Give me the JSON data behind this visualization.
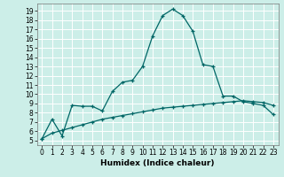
{
  "xlabel": "Humidex (Indice chaleur)",
  "bg_color": "#cceee8",
  "grid_color": "#ffffff",
  "line_color": "#006666",
  "xlim": [
    -0.5,
    23.5
  ],
  "ylim": [
    4.5,
    19.8
  ],
  "xticks": [
    0,
    1,
    2,
    3,
    4,
    5,
    6,
    7,
    8,
    9,
    10,
    11,
    12,
    13,
    14,
    15,
    16,
    17,
    18,
    19,
    20,
    21,
    22,
    23
  ],
  "yticks": [
    5,
    6,
    7,
    8,
    9,
    10,
    11,
    12,
    13,
    14,
    15,
    16,
    17,
    18,
    19
  ],
  "curve1_x": [
    0,
    1,
    2,
    3,
    4,
    5,
    6,
    7,
    8,
    9,
    10,
    11,
    12,
    13,
    14,
    15,
    16,
    17,
    18,
    19,
    20,
    21,
    22,
    23
  ],
  "curve1_y": [
    5.2,
    7.3,
    5.5,
    8.8,
    8.7,
    8.7,
    8.2,
    10.3,
    11.3,
    11.5,
    13.0,
    16.3,
    18.5,
    19.2,
    18.5,
    16.8,
    13.2,
    13.0,
    9.8,
    9.8,
    9.2,
    9.0,
    8.8,
    7.8
  ],
  "curve2_x": [
    0,
    1,
    2,
    3,
    4,
    5,
    6,
    7,
    8,
    9,
    10,
    11,
    12,
    13,
    14,
    15,
    16,
    17,
    18,
    19,
    20,
    21,
    22,
    23
  ],
  "curve2_y": [
    5.2,
    5.8,
    6.1,
    6.4,
    6.7,
    7.0,
    7.3,
    7.5,
    7.7,
    7.9,
    8.1,
    8.3,
    8.5,
    8.6,
    8.7,
    8.8,
    8.9,
    9.0,
    9.1,
    9.2,
    9.3,
    9.2,
    9.1,
    8.8
  ],
  "tick_fontsize": 5.5,
  "xlabel_fontsize": 6.5
}
